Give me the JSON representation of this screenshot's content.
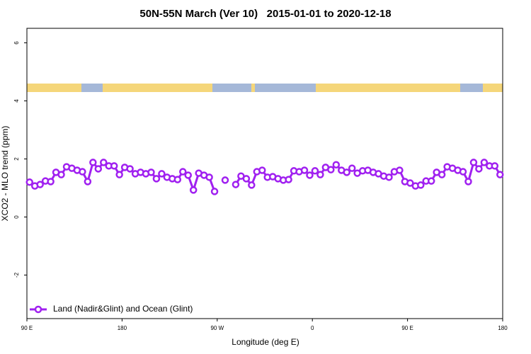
{
  "chart_data": {
    "type": "line",
    "title": "50N-55N March (Ver 10)   2015-01-01 to 2020-12-18",
    "x_label": "Longitude (deg E)",
    "y_label": "XCO2 - MLO trend (ppm)",
    "xlim": [
      90,
      540
    ],
    "ylim": [
      -3.5,
      6.5
    ],
    "xticks": [
      {
        "value": 90,
        "label": "90 E"
      },
      180,
      {
        "value": 270,
        "label": "90 W"
      },
      {
        "value": 360,
        "label": "0"
      },
      {
        "value": 450,
        "label": "90 E"
      },
      {
        "value": 540,
        "label": "180"
      }
    ],
    "yticks": [
      -2,
      0,
      2,
      4,
      6
    ],
    "legend_position": "bottom-left",
    "x": [
      92.5,
      97.5,
      102.5,
      107.5,
      112.5,
      117.5,
      122.5,
      127.5,
      132.5,
      137.5,
      142.5,
      147.5,
      152.5,
      157.5,
      162.5,
      167.5,
      172.5,
      177.5,
      182.5,
      187.5,
      192.5,
      197.5,
      202.5,
      207.5,
      212.5,
      217.5,
      222.5,
      227.5,
      232.5,
      237.5,
      242.5,
      247.5,
      252.5,
      257.5,
      262.5,
      267.5,
      272.5,
      277.5,
      282.5,
      287.5,
      292.5,
      297.5,
      302.5,
      307.5,
      312.5,
      317.5,
      322.5,
      327.5,
      332.5,
      337.5,
      342.5,
      347.5,
      352.5,
      357.5,
      362.5,
      367.5,
      372.5,
      377.5,
      382.5,
      387.5,
      392.5,
      397.5,
      402.5,
      407.5,
      412.5,
      417.5,
      422.5,
      427.5,
      432.5,
      437.5,
      442.5,
      447.5,
      452.5,
      457.5,
      462.5,
      467.5,
      472.5,
      477.5,
      482.5,
      487.5,
      492.5,
      497.5,
      502.5,
      507.5,
      512.5,
      517.5,
      522.5,
      527.5,
      532.5,
      537.5
    ],
    "series": [
      {
        "name": "Land (Nadir&Glint) and Ocean (Glint)",
        "color": "#a020f0",
        "values": [
          1.2,
          1.07,
          1.12,
          1.24,
          1.22,
          1.54,
          1.46,
          1.73,
          1.68,
          1.61,
          1.56,
          1.22,
          1.88,
          1.66,
          1.88,
          1.76,
          1.76,
          1.46,
          1.71,
          1.66,
          1.49,
          1.54,
          1.49,
          1.54,
          1.32,
          1.49,
          1.37,
          1.32,
          1.29,
          1.56,
          1.44,
          0.93,
          1.51,
          1.44,
          1.37,
          0.88,
          null,
          1.27,
          null,
          1.12,
          1.41,
          1.32,
          1.1,
          1.56,
          1.61,
          1.37,
          1.39,
          1.32,
          1.27,
          1.29,
          1.59,
          1.56,
          1.61,
          1.44,
          1.59,
          1.46,
          1.71,
          1.63,
          1.8,
          1.61,
          1.54,
          1.68,
          1.51,
          1.59,
          1.61,
          1.54,
          1.49,
          1.41,
          1.37,
          1.56,
          1.61,
          1.22,
          1.17,
          1.07,
          1.1,
          1.24,
          1.24,
          1.54,
          1.46,
          1.73,
          1.68,
          1.61,
          1.56,
          1.22,
          1.88,
          1.66,
          1.88,
          1.76,
          1.76,
          1.46
        ]
      }
    ]
  }
}
